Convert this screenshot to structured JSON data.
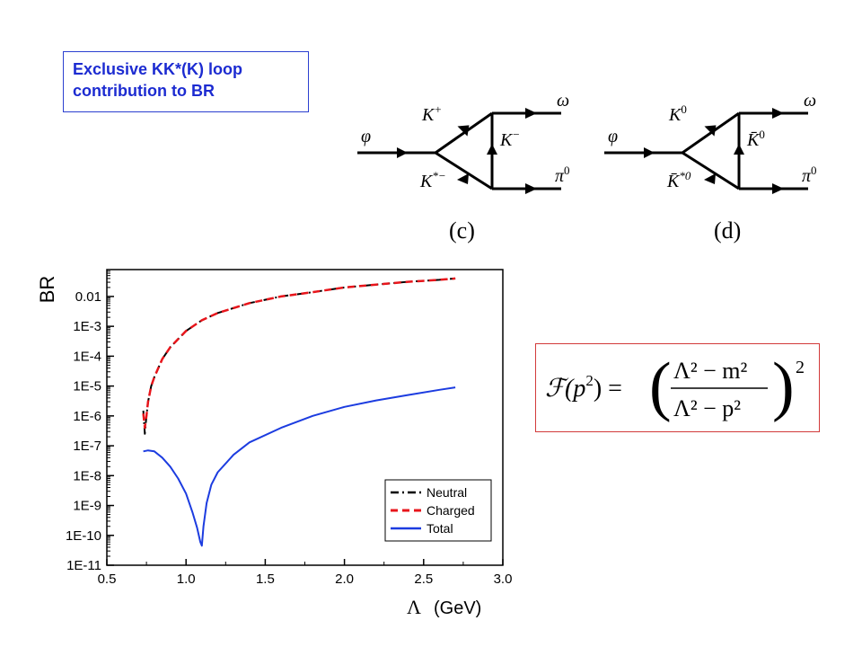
{
  "title_box": {
    "line1": "Exclusive KK*(K) loop",
    "line2": "contribution to BR"
  },
  "diagrams": [
    {
      "incoming": "φ",
      "top": "K",
      "top_sup": "+",
      "bottom": "K",
      "bottom_sup": "*−",
      "exchange": "K",
      "exchange_sup": "−",
      "out_top": "ω",
      "out_bottom": "π",
      "out_bottom_sup": "0",
      "label": "(c)"
    },
    {
      "incoming": "φ",
      "top": "K",
      "top_sup": "0",
      "bottom": "K̄",
      "bottom_sup": "*0",
      "exchange": "K̄",
      "exchange_sup": "0",
      "out_top": "ω",
      "out_bottom": "π",
      "out_bottom_sup": "0",
      "label": "(d)"
    }
  ],
  "formula": {
    "lhs": "ℱ(p",
    "lhs_sup": "2",
    "lhs_close": ") =",
    "num": "Λ² − m²",
    "den": "Λ² − p²",
    "power": "2"
  },
  "colors": {
    "title_blue": "#1c2bd1",
    "neutral": "#000000",
    "charged": "#e8151b",
    "total": "#1c3ce0",
    "formula_border": "#d23a3a"
  },
  "chart_data": {
    "type": "line",
    "xlabel_symbol": "Λ",
    "xlabel_unit": "(GeV)",
    "ylabel": "BR",
    "xlim": [
      0.5,
      3.0
    ],
    "ylim_log10": [
      -11,
      -1.1
    ],
    "y_scale": "log",
    "x_ticks": [
      "0.5",
      "1.0",
      "1.5",
      "2.0",
      "2.5",
      "3.0"
    ],
    "y_ticks": [
      "1E-11",
      "1E-10",
      "1E-9",
      "1E-8",
      "1E-7",
      "1E-6",
      "1E-5",
      "1E-4",
      "1E-3",
      "0.01"
    ],
    "legend_position": "bottom-right",
    "series": [
      {
        "name": "Neutral",
        "style": "dashdot",
        "color": "#000000",
        "x": [
          0.73,
          0.74,
          0.75,
          0.76,
          0.78,
          0.8,
          0.85,
          0.9,
          1.0,
          1.1,
          1.2,
          1.4,
          1.6,
          1.8,
          2.0,
          2.2,
          2.4,
          2.6,
          2.7
        ],
        "y": [
          1.5e-06,
          2.5e-07,
          1e-06,
          3e-06,
          1e-05,
          2e-05,
          8e-05,
          0.0002,
          0.0007,
          0.0016,
          0.0028,
          0.006,
          0.01,
          0.014,
          0.02,
          0.025,
          0.031,
          0.036,
          0.04
        ]
      },
      {
        "name": "Charged",
        "style": "dashed",
        "color": "#e8151b",
        "x": [
          0.73,
          0.74,
          0.75,
          0.76,
          0.78,
          0.8,
          0.85,
          0.9,
          1.0,
          1.1,
          1.2,
          1.4,
          1.6,
          1.8,
          2.0,
          2.2,
          2.4,
          2.6,
          2.7
        ],
        "y": [
          1.2e-06,
          4e-07,
          1e-06,
          3e-06,
          1e-05,
          2e-05,
          8e-05,
          0.0002,
          0.0007,
          0.0016,
          0.0028,
          0.006,
          0.01,
          0.014,
          0.02,
          0.025,
          0.031,
          0.036,
          0.04
        ]
      },
      {
        "name": "Total",
        "style": "solid",
        "color": "#1c3ce0",
        "x": [
          0.73,
          0.76,
          0.8,
          0.85,
          0.9,
          0.95,
          1.0,
          1.04,
          1.07,
          1.09,
          1.1,
          1.11,
          1.13,
          1.16,
          1.2,
          1.3,
          1.4,
          1.6,
          1.8,
          2.0,
          2.2,
          2.4,
          2.6,
          2.7
        ],
        "y": [
          6.5e-08,
          7e-08,
          6.5e-08,
          4e-08,
          2e-08,
          8e-09,
          2.5e-09,
          6e-10,
          1.8e-10,
          6e-11,
          4.5e-11,
          2e-10,
          1.2e-09,
          5e-09,
          1.3e-08,
          5e-08,
          1.3e-07,
          4e-07,
          1e-06,
          2e-06,
          3.3e-06,
          5e-06,
          7.5e-06,
          9e-06
        ]
      }
    ]
  }
}
